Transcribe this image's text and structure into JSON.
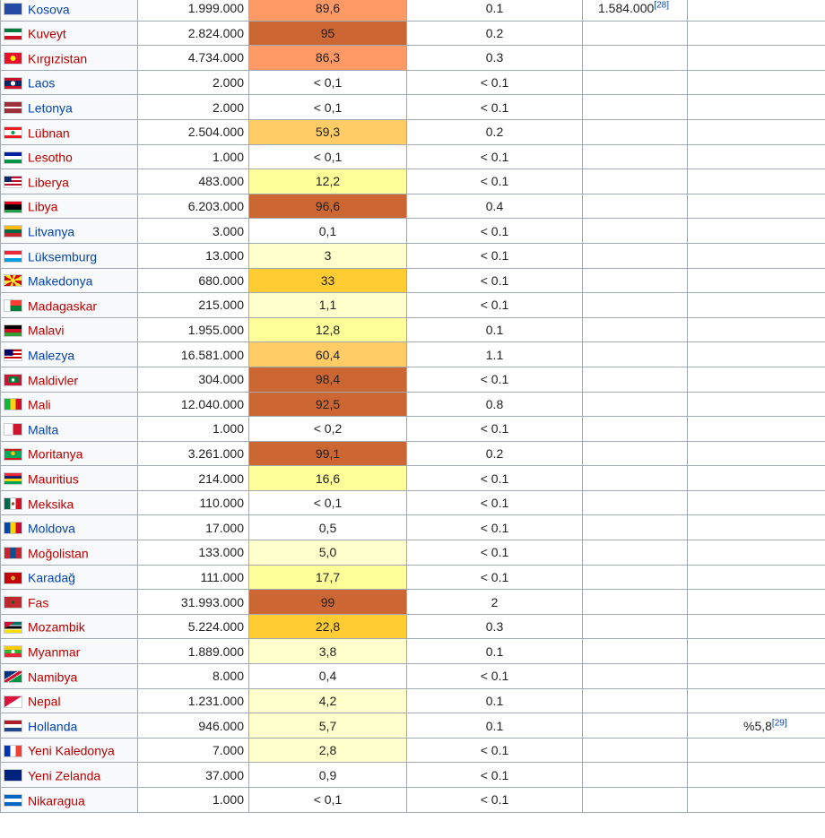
{
  "colors": {
    "link": "#0645ad",
    "redlink": "#ba0000",
    "band_0": "#ffffff",
    "band_1": "#ffffcc",
    "band_2": "#ffff99",
    "band_3": "#ffcc33",
    "band_4": "#ffcc66",
    "band_5": "#ff9966",
    "band_6": "#cc6633"
  },
  "rows": [
    {
      "country": "Kosova",
      "link": "blue",
      "flag": "kosovo-flag",
      "population": "1.999.000",
      "percent": "89,6",
      "pct_color": "#ff9966",
      "share": "0.1",
      "extra1": "1.584.000",
      "extra1_ref": "[28]",
      "extra2": "",
      "extra2_ref": ""
    },
    {
      "country": "Kuveyt",
      "link": "red",
      "flag": "kuwait-flag",
      "population": "2.824.000",
      "percent": "95",
      "pct_color": "#cc6633",
      "share": "0.2",
      "extra1": "",
      "extra1_ref": "",
      "extra2": "",
      "extra2_ref": ""
    },
    {
      "country": "Kırgızistan",
      "link": "red",
      "flag": "kyrgyzstan-flag",
      "population": "4.734.000",
      "percent": "86,3",
      "pct_color": "#ff9966",
      "share": "0.3",
      "extra1": "",
      "extra1_ref": "",
      "extra2": "",
      "extra2_ref": ""
    },
    {
      "country": "Laos",
      "link": "blue",
      "flag": "laos-flag",
      "population": "2.000",
      "percent": "< 0,1",
      "pct_color": "#ffffff",
      "share": "< 0.1",
      "extra1": "",
      "extra1_ref": "",
      "extra2": "",
      "extra2_ref": ""
    },
    {
      "country": "Letonya",
      "link": "blue",
      "flag": "latvia-flag",
      "population": "2.000",
      "percent": "< 0,1",
      "pct_color": "#ffffff",
      "share": "< 0.1",
      "extra1": "",
      "extra1_ref": "",
      "extra2": "",
      "extra2_ref": ""
    },
    {
      "country": "Lübnan",
      "link": "red",
      "flag": "lebanon-flag",
      "population": "2.504.000",
      "percent": "59,3",
      "pct_color": "#ffcc66",
      "share": "0.2",
      "extra1": "",
      "extra1_ref": "",
      "extra2": "",
      "extra2_ref": ""
    },
    {
      "country": "Lesotho",
      "link": "red",
      "flag": "lesotho-flag",
      "population": "1.000",
      "percent": "< 0,1",
      "pct_color": "#ffffff",
      "share": "< 0.1",
      "extra1": "",
      "extra1_ref": "",
      "extra2": "",
      "extra2_ref": ""
    },
    {
      "country": "Liberya",
      "link": "red",
      "flag": "liberia-flag",
      "population": "483.000",
      "percent": "12,2",
      "pct_color": "#ffff99",
      "share": "< 0.1",
      "extra1": "",
      "extra1_ref": "",
      "extra2": "",
      "extra2_ref": ""
    },
    {
      "country": "Libya",
      "link": "red",
      "flag": "libya-flag",
      "population": "6.203.000",
      "percent": "96,6",
      "pct_color": "#cc6633",
      "share": "0.4",
      "extra1": "",
      "extra1_ref": "",
      "extra2": "",
      "extra2_ref": ""
    },
    {
      "country": "Litvanya",
      "link": "blue",
      "flag": "lithuania-flag",
      "population": "3.000",
      "percent": "0,1",
      "pct_color": "#ffffff",
      "share": "< 0.1",
      "extra1": "",
      "extra1_ref": "",
      "extra2": "",
      "extra2_ref": ""
    },
    {
      "country": "Lüksemburg",
      "link": "blue",
      "flag": "luxembourg-flag",
      "population": "13.000",
      "percent": "3",
      "pct_color": "#ffffcc",
      "share": "< 0.1",
      "extra1": "",
      "extra1_ref": "",
      "extra2": "",
      "extra2_ref": ""
    },
    {
      "country": "Makedonya",
      "link": "blue",
      "flag": "macedonia-flag",
      "population": "680.000",
      "percent": "33",
      "pct_color": "#ffcc33",
      "share": "< 0.1",
      "extra1": "",
      "extra1_ref": "",
      "extra2": "",
      "extra2_ref": ""
    },
    {
      "country": "Madagaskar",
      "link": "red",
      "flag": "madagascar-flag",
      "population": "215.000",
      "percent": "1,1",
      "pct_color": "#ffffcc",
      "share": "< 0.1",
      "extra1": "",
      "extra1_ref": "",
      "extra2": "",
      "extra2_ref": ""
    },
    {
      "country": "Malavi",
      "link": "red",
      "flag": "malawi-flag",
      "population": "1.955.000",
      "percent": "12,8",
      "pct_color": "#ffff99",
      "share": "0.1",
      "extra1": "",
      "extra1_ref": "",
      "extra2": "",
      "extra2_ref": ""
    },
    {
      "country": "Malezya",
      "link": "blue",
      "flag": "malaysia-flag",
      "population": "16.581.000",
      "percent": "60,4",
      "pct_color": "#ffcc66",
      "share": "1.1",
      "extra1": "",
      "extra1_ref": "",
      "extra2": "",
      "extra2_ref": ""
    },
    {
      "country": "Maldivler",
      "link": "red",
      "flag": "maldives-flag",
      "population": "304.000",
      "percent": "98,4",
      "pct_color": "#cc6633",
      "share": "< 0.1",
      "extra1": "",
      "extra1_ref": "",
      "extra2": "",
      "extra2_ref": ""
    },
    {
      "country": "Mali",
      "link": "red",
      "flag": "mali-flag",
      "population": "12.040.000",
      "percent": "92,5",
      "pct_color": "#cc6633",
      "share": "0.8",
      "extra1": "",
      "extra1_ref": "",
      "extra2": "",
      "extra2_ref": ""
    },
    {
      "country": "Malta",
      "link": "blue",
      "flag": "malta-flag",
      "population": "1.000",
      "percent": "< 0,2",
      "pct_color": "#ffffff",
      "share": "< 0.1",
      "extra1": "",
      "extra1_ref": "",
      "extra2": "",
      "extra2_ref": ""
    },
    {
      "country": "Moritanya",
      "link": "red",
      "flag": "mauritania-flag",
      "population": "3.261.000",
      "percent": "99,1",
      "pct_color": "#cc6633",
      "share": "0.2",
      "extra1": "",
      "extra1_ref": "",
      "extra2": "",
      "extra2_ref": ""
    },
    {
      "country": "Mauritius",
      "link": "red",
      "flag": "mauritius-flag",
      "population": "214.000",
      "percent": "16,6",
      "pct_color": "#ffff99",
      "share": "< 0.1",
      "extra1": "",
      "extra1_ref": "",
      "extra2": "",
      "extra2_ref": ""
    },
    {
      "country": "Meksika",
      "link": "red",
      "flag": "mexico-flag",
      "population": "110.000",
      "percent": "< 0,1",
      "pct_color": "#ffffff",
      "share": "< 0.1",
      "extra1": "",
      "extra1_ref": "",
      "extra2": "",
      "extra2_ref": ""
    },
    {
      "country": "Moldova",
      "link": "blue",
      "flag": "moldova-flag",
      "population": "17.000",
      "percent": "0,5",
      "pct_color": "#ffffff",
      "share": "< 0.1",
      "extra1": "",
      "extra1_ref": "",
      "extra2": "",
      "extra2_ref": ""
    },
    {
      "country": "Moğolistan",
      "link": "red",
      "flag": "mongolia-flag",
      "population": "133.000",
      "percent": "5,0",
      "pct_color": "#ffffcc",
      "share": "< 0.1",
      "extra1": "",
      "extra1_ref": "",
      "extra2": "",
      "extra2_ref": ""
    },
    {
      "country": "Karadağ",
      "link": "blue",
      "flag": "montenegro-flag",
      "population": "111.000",
      "percent": "17,7",
      "pct_color": "#ffff99",
      "share": "< 0.1",
      "extra1": "",
      "extra1_ref": "",
      "extra2": "",
      "extra2_ref": ""
    },
    {
      "country": "Fas",
      "link": "red",
      "flag": "morocco-flag",
      "population": "31.993.000",
      "percent": "99",
      "pct_color": "#cc6633",
      "share": "2",
      "extra1": "",
      "extra1_ref": "",
      "extra2": "",
      "extra2_ref": ""
    },
    {
      "country": "Mozambik",
      "link": "red",
      "flag": "mozambique-flag",
      "population": "5.224.000",
      "percent": "22,8",
      "pct_color": "#ffcc33",
      "share": "0.3",
      "extra1": "",
      "extra1_ref": "",
      "extra2": "",
      "extra2_ref": ""
    },
    {
      "country": "Myanmar",
      "link": "red",
      "flag": "myanmar-flag",
      "population": "1.889.000",
      "percent": "3,8",
      "pct_color": "#ffffcc",
      "share": "0.1",
      "extra1": "",
      "extra1_ref": "",
      "extra2": "",
      "extra2_ref": ""
    },
    {
      "country": "Namibya",
      "link": "red",
      "flag": "namibia-flag",
      "population": "8.000",
      "percent": "0,4",
      "pct_color": "#ffffff",
      "share": "< 0.1",
      "extra1": "",
      "extra1_ref": "",
      "extra2": "",
      "extra2_ref": ""
    },
    {
      "country": "Nepal",
      "link": "red",
      "flag": "nepal-flag",
      "population": "1.231.000",
      "percent": "4,2",
      "pct_color": "#ffffcc",
      "share": "0.1",
      "extra1": "",
      "extra1_ref": "",
      "extra2": "",
      "extra2_ref": ""
    },
    {
      "country": "Hollanda",
      "link": "blue",
      "flag": "netherlands-flag",
      "population": "946.000",
      "percent": "5,7",
      "pct_color": "#ffffcc",
      "share": "0.1",
      "extra1": "",
      "extra1_ref": "",
      "extra2": "%5,8",
      "extra2_ref": "[29]"
    },
    {
      "country": "Yeni Kaledonya",
      "link": "red",
      "flag": "new-caledonia-flag",
      "population": "7.000",
      "percent": "2,8",
      "pct_color": "#ffffcc",
      "share": "< 0.1",
      "extra1": "",
      "extra1_ref": "",
      "extra2": "",
      "extra2_ref": ""
    },
    {
      "country": "Yeni Zelanda",
      "link": "red",
      "flag": "new-zealand-flag",
      "population": "37.000",
      "percent": "0,9",
      "pct_color": "#ffffff",
      "share": "< 0.1",
      "extra1": "",
      "extra1_ref": "",
      "extra2": "",
      "extra2_ref": ""
    },
    {
      "country": "Nikaragua",
      "link": "red",
      "flag": "nicaragua-flag",
      "population": "1.000",
      "percent": "< 0,1",
      "pct_color": "#ffffff",
      "share": "< 0.1",
      "extra1": "",
      "extra1_ref": "",
      "extra2": "",
      "extra2_ref": ""
    }
  ]
}
